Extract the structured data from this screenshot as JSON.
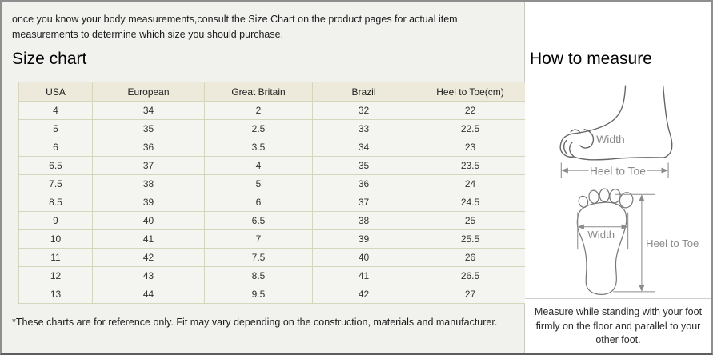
{
  "page": {
    "intro": "once you know your body measurements,consult the Size Chart on the product pages for actual item measurements to determine which size you should purchase."
  },
  "size_chart": {
    "title": "Size chart",
    "table": {
      "headers": [
        "USA",
        "European",
        "Great Britain",
        "Brazil",
        "Heel to Toe(cm)"
      ],
      "rows": [
        [
          "4",
          "34",
          "2",
          "32",
          "22"
        ],
        [
          "5",
          "35",
          "2.5",
          "33",
          "22.5"
        ],
        [
          "6",
          "36",
          "3.5",
          "34",
          "23"
        ],
        [
          "6.5",
          "37",
          "4",
          "35",
          "23.5"
        ],
        [
          "7.5",
          "38",
          "5",
          "36",
          "24"
        ],
        [
          "8.5",
          "39",
          "6",
          "37",
          "24.5"
        ],
        [
          "9",
          "40",
          "6.5",
          "38",
          "25"
        ],
        [
          "10",
          "41",
          "7",
          "39",
          "25.5"
        ],
        [
          "11",
          "42",
          "7.5",
          "40",
          "26"
        ],
        [
          "12",
          "43",
          "8.5",
          "41",
          "26.5"
        ],
        [
          "13",
          "44",
          "9.5",
          "42",
          "27"
        ]
      ]
    },
    "footnote": "*These charts are for reference only. Fit may vary depending on the construction, materials and manufacturer."
  },
  "how_to_measure": {
    "title": "How to measure",
    "side_diagram": {
      "width_label": "Width",
      "length_label": "Heel to Toe"
    },
    "sole_diagram": {
      "width_label": "Width",
      "length_label": "Heel to Toe"
    },
    "note": "Measure while standing with your foot firmly on the floor and parallel to your other foot."
  },
  "colors": {
    "panel_bg": "#f1f1ee",
    "table_cell_bg": "#f4f4f0",
    "table_header_bg": "#eeeadb",
    "table_border": "#d6d6bd",
    "outer_border": "#8f8f8f",
    "diagram_line": "#8b8b8b"
  }
}
